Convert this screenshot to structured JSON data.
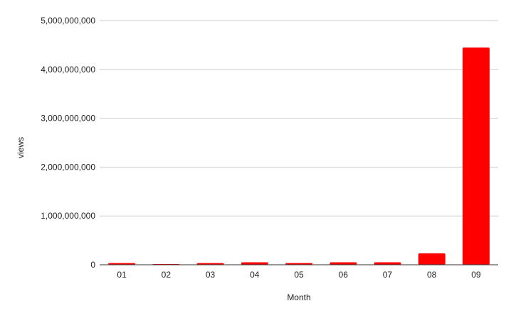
{
  "chart_data": {
    "type": "bar",
    "title": "",
    "xlabel": "Month",
    "ylabel": "views",
    "categories": [
      "01",
      "02",
      "03",
      "04",
      "05",
      "06",
      "07",
      "08",
      "09"
    ],
    "values": [
      35000000,
      15000000,
      35000000,
      50000000,
      35000000,
      50000000,
      50000000,
      235000000,
      4450000000
    ],
    "ylim": [
      0,
      5000000000
    ],
    "yticks": [
      "0",
      "1,000,000,000",
      "2,000,000,000",
      "3,000,000,000",
      "4,000,000,000",
      "5,000,000,000"
    ],
    "grid": true,
    "legend": "none",
    "bar_color": "#ff0000"
  }
}
